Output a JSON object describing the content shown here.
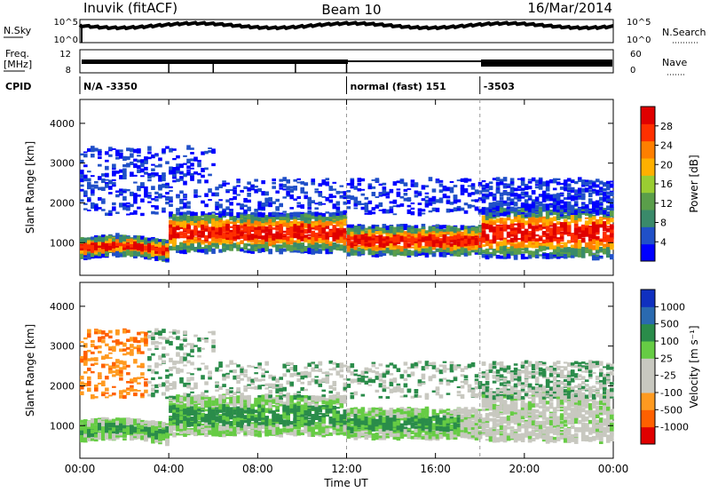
{
  "header": {
    "station": "Inuvik (fitACF)",
    "beam": "Beam 10",
    "date": "16/Mar/2014"
  },
  "top_panels": {
    "noise_left_label": "N.Sky",
    "noise_right_label": "N.Search",
    "noise_ticks_left": [
      "10^5",
      "10^0"
    ],
    "noise_ticks_right": [
      "10^5",
      "10^0"
    ],
    "freq_label": "Freq.",
    "freq_unit": "[MHz]",
    "freq_ticks": [
      "12",
      "8"
    ],
    "nave_label": "Nave",
    "nave_ticks": [
      "60",
      "0"
    ],
    "cpid_label": "CPID",
    "cpid_segments": [
      {
        "text": "N/A -3350",
        "start_hour": 0
      },
      {
        "text": "normal (fast) 151",
        "start_hour": 12
      },
      {
        "text": "-3503",
        "start_hour": 18
      }
    ],
    "freq_step_hours": [
      4,
      6,
      9.7,
      12
    ]
  },
  "colors": {
    "power_scale": [
      "#0000ff",
      "#2050c8",
      "#3a8a6a",
      "#5a9e4a",
      "#9acd32",
      "#ffb000",
      "#ff7f00",
      "#ff3000",
      "#e00000"
    ],
    "velocity_scale": [
      "#e00000",
      "#ff6000",
      "#ff9a20",
      "#c8c8c0",
      "#c8c8c0",
      "#66cc44",
      "#2a8c4a",
      "#2a6ab0",
      "#1030c0"
    ]
  },
  "chart_data": [
    {
      "type": "heatmap",
      "panel": "power",
      "ylabel": "Slant Range [km]",
      "yticks": [
        1000,
        2000,
        3000,
        4000
      ],
      "ylim": [
        180,
        4600
      ],
      "xlim": [
        0,
        24
      ],
      "colorbar_label": "Power [dB]",
      "colorbar_ticks": [
        "28",
        "24",
        "20",
        "16",
        "12",
        "8",
        "4"
      ],
      "colorbar_range": [
        0,
        32
      ],
      "dominant_bands": [
        {
          "x": [
            0,
            4
          ],
          "y": [
            700,
            1000
          ],
          "value": 24
        },
        {
          "x": [
            4,
            12
          ],
          "y": [
            900,
            1600
          ],
          "value": 26
        },
        {
          "x": [
            12,
            18
          ],
          "y": [
            800,
            1300
          ],
          "value": 24
        },
        {
          "x": [
            18,
            24
          ],
          "y": [
            800,
            1700
          ],
          "value": 22
        }
      ]
    },
    {
      "type": "heatmap",
      "panel": "velocity",
      "ylabel": "Slant Range [km]",
      "yticks": [
        1000,
        2000,
        3000,
        4000
      ],
      "ylim": [
        180,
        4600
      ],
      "xlim": [
        0,
        24
      ],
      "xlabel": "Time UT",
      "xticks": [
        "00:00",
        "04:00",
        "08:00",
        "12:00",
        "16:00",
        "20:00",
        "00:00"
      ],
      "colorbar_label": "Velocity [m s⁻¹]",
      "colorbar_ticks": [
        "1000",
        "500",
        "100",
        "25",
        "-25",
        "-100",
        "-500",
        "-1000"
      ],
      "colorbar_range": [
        -1200,
        1200
      ]
    }
  ]
}
